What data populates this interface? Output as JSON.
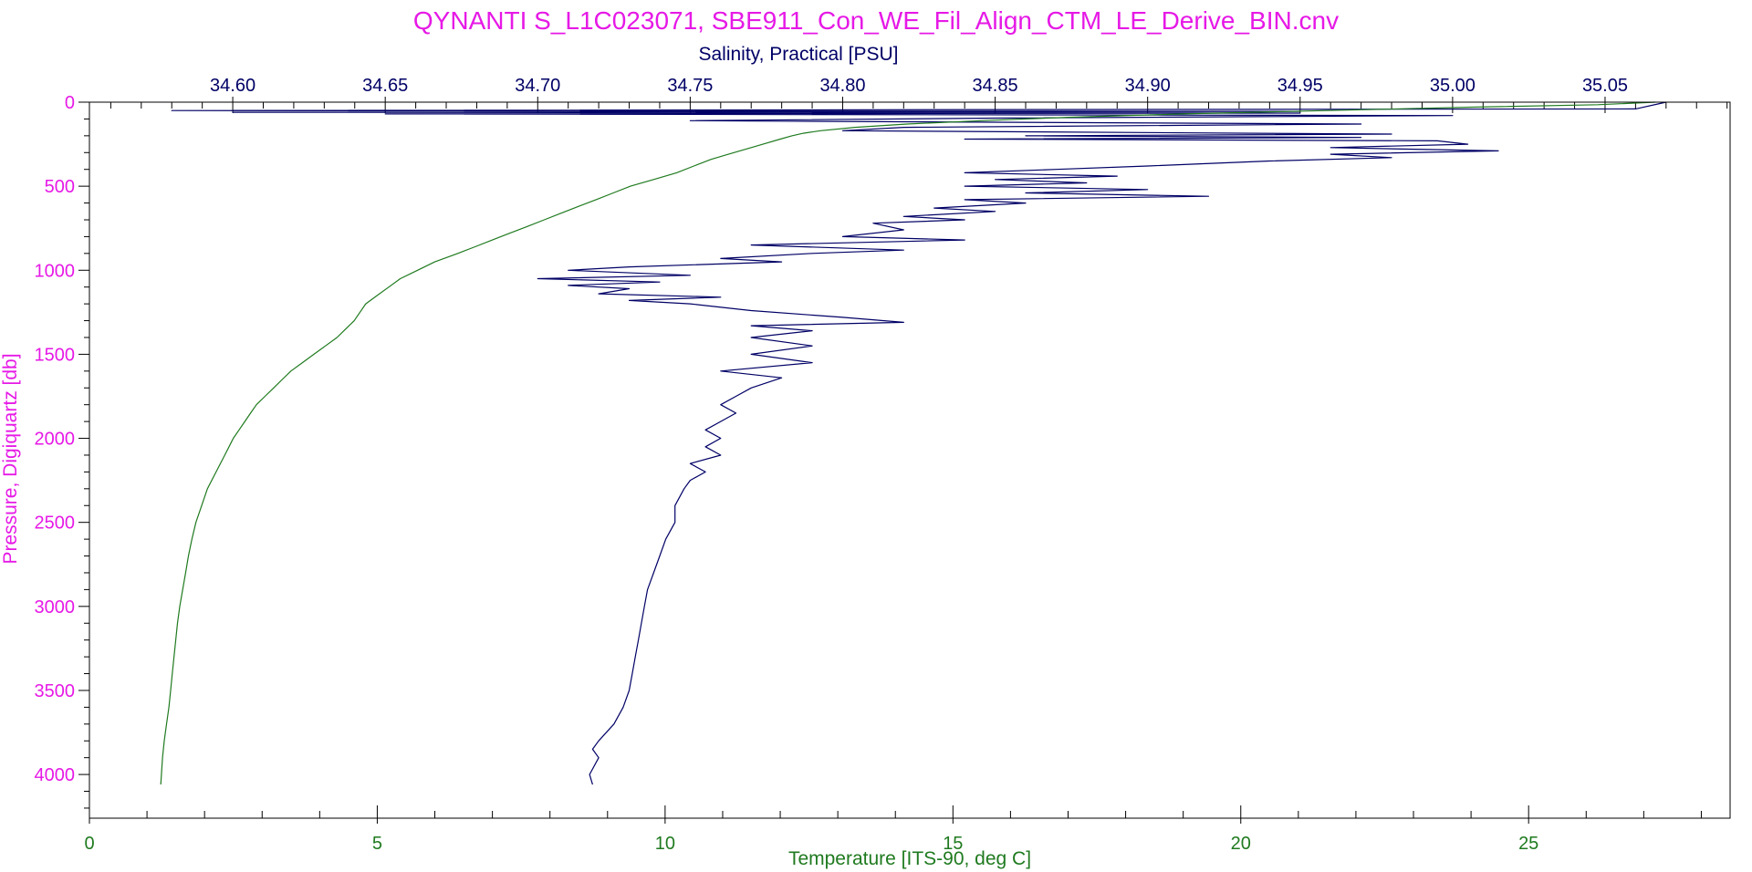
{
  "colors": {
    "title": "#e619e6",
    "pressure_axis": "#e619e6",
    "salinity": "#000066",
    "temperature": "#1f7a1f",
    "frame": "#000000"
  },
  "chart_data": {
    "type": "line",
    "title": "QYNANTI S_L1C023071, SBE911_Con_WE_Fil_Align_CTM_LE_Derive_BIN.cnv",
    "y_axis": {
      "label": "Pressure, Digiquartz [db]",
      "range": [
        0,
        4260
      ],
      "inverted": true,
      "ticks": [
        0,
        500,
        1000,
        1500,
        2000,
        2500,
        3000,
        3500,
        4000
      ],
      "tick_labels": [
        "0",
        "500",
        "1000",
        "1500",
        "2000",
        "2500",
        "3000",
        "3500",
        "4000"
      ]
    },
    "x_axis_top": {
      "label": "Salinity, Practical [PSU]",
      "range": [
        34.553,
        35.091
      ],
      "ticks": [
        34.6,
        34.65,
        34.7,
        34.75,
        34.8,
        34.85,
        34.9,
        34.95,
        35.0,
        35.05
      ],
      "tick_labels": [
        "34.60",
        "34.65",
        "34.70",
        "34.75",
        "34.80",
        "34.85",
        "34.90",
        "34.95",
        "35.00",
        "35.05"
      ]
    },
    "x_axis_bottom": {
      "label": "Temperature [ITS-90, deg C]",
      "range": [
        0,
        28.5
      ],
      "ticks": [
        0,
        5,
        10,
        15,
        20,
        25
      ],
      "tick_labels": [
        "0",
        "5",
        "10",
        "15",
        "20",
        "25"
      ]
    },
    "grid": false,
    "series": [
      {
        "axis": "salinity",
        "pressure": [
          0,
          8,
          40,
          50,
          55,
          60,
          65,
          70,
          80,
          95,
          110,
          130,
          150,
          170,
          190,
          200,
          210,
          220,
          230,
          250,
          270,
          290,
          310,
          330,
          350,
          380,
          400,
          420,
          440,
          460,
          480,
          500,
          520,
          540,
          560,
          580,
          600,
          630,
          650,
          680,
          700,
          720,
          760,
          800,
          820,
          850,
          880,
          900,
          930,
          950,
          980,
          1000,
          1030,
          1050,
          1070,
          1090,
          1110,
          1140,
          1160,
          1180,
          1200,
          1240,
          1280,
          1310,
          1330,
          1360,
          1400,
          1450,
          1500,
          1550,
          1600,
          1640,
          1700,
          1750,
          1800,
          1850,
          1900,
          1950,
          2000,
          2050,
          2100,
          2150,
          2200,
          2250,
          2300,
          2400,
          2500,
          2600,
          2700,
          2800,
          2900,
          3000,
          3100,
          3200,
          3300,
          3400,
          3500,
          3600,
          3700,
          3800,
          3850,
          3900,
          4000,
          4060
        ],
        "values": [
          35.07,
          35.068,
          35.06,
          34.58,
          34.95,
          34.6,
          34.95,
          34.65,
          35.0,
          34.85,
          34.75,
          34.97,
          34.82,
          34.8,
          34.98,
          34.86,
          34.97,
          34.84,
          34.995,
          35.005,
          34.96,
          35.015,
          34.96,
          34.98,
          34.94,
          34.9,
          34.87,
          34.84,
          34.89,
          34.85,
          34.88,
          34.84,
          34.9,
          34.86,
          34.92,
          34.84,
          34.86,
          34.83,
          34.85,
          34.82,
          34.84,
          34.81,
          34.82,
          34.8,
          34.84,
          34.77,
          34.82,
          34.79,
          34.76,
          34.78,
          34.73,
          34.71,
          34.75,
          34.7,
          34.74,
          34.71,
          34.73,
          34.72,
          34.76,
          34.73,
          34.75,
          34.77,
          34.8,
          34.82,
          34.77,
          34.79,
          34.77,
          34.79,
          34.77,
          34.79,
          34.76,
          34.78,
          34.77,
          34.765,
          34.76,
          34.765,
          34.76,
          34.755,
          34.76,
          34.755,
          34.76,
          34.75,
          34.755,
          34.75,
          34.748,
          34.745,
          34.745,
          34.742,
          34.74,
          34.738,
          34.736,
          34.735,
          34.734,
          34.733,
          34.732,
          34.731,
          34.73,
          34.728,
          34.725,
          34.72,
          34.718,
          34.72,
          34.717,
          34.718
        ]
      },
      {
        "axis": "temperature",
        "pressure": [
          0,
          15,
          30,
          50,
          70,
          90,
          110,
          130,
          150,
          170,
          185,
          200,
          220,
          250,
          280,
          310,
          340,
          380,
          420,
          460,
          500,
          540,
          580,
          620,
          660,
          700,
          740,
          780,
          820,
          860,
          900,
          950,
          1000,
          1050,
          1100,
          1150,
          1200,
          1250,
          1300,
          1350,
          1400,
          1450,
          1500,
          1550,
          1600,
          1650,
          1700,
          1750,
          1800,
          1850,
          1900,
          1950,
          2000,
          2100,
          2200,
          2300,
          2400,
          2500,
          2600,
          2700,
          2800,
          2900,
          3000,
          3100,
          3200,
          3300,
          3400,
          3500,
          3600,
          3700,
          3800,
          3900,
          4000,
          4060
        ],
        "values": [
          27.2,
          26.2,
          24.0,
          21.5,
          19.0,
          17.0,
          15.5,
          14.2,
          13.3,
          12.7,
          12.4,
          12.2,
          12.0,
          11.7,
          11.4,
          11.1,
          10.8,
          10.5,
          10.2,
          9.8,
          9.4,
          9.1,
          8.8,
          8.5,
          8.2,
          7.9,
          7.6,
          7.3,
          7.0,
          6.7,
          6.4,
          6.0,
          5.7,
          5.4,
          5.2,
          5.0,
          4.8,
          4.7,
          4.6,
          4.45,
          4.3,
          4.1,
          3.9,
          3.7,
          3.5,
          3.35,
          3.2,
          3.05,
          2.9,
          2.8,
          2.7,
          2.6,
          2.5,
          2.35,
          2.2,
          2.05,
          1.95,
          1.85,
          1.78,
          1.72,
          1.67,
          1.62,
          1.57,
          1.53,
          1.5,
          1.47,
          1.44,
          1.41,
          1.38,
          1.34,
          1.3,
          1.27,
          1.25,
          1.24
        ]
      }
    ]
  }
}
